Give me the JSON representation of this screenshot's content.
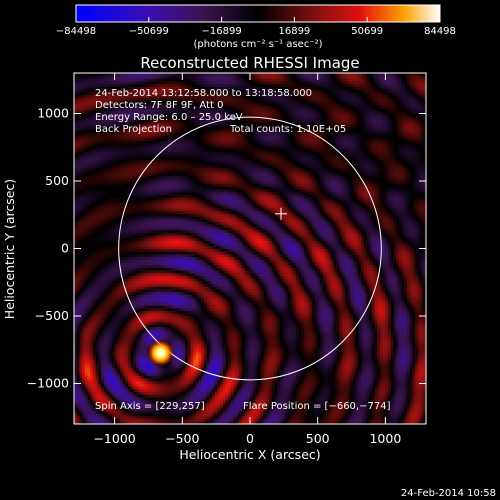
{
  "chart_data": {
    "type": "heatmap",
    "title": "Reconstructed RHESSI Image",
    "xlabel": "Heliocentric X (arcsec)",
    "ylabel": "Heliocentric Y (arcsec)",
    "xlim": [
      -1300,
      1300
    ],
    "ylim": [
      -1300,
      1300
    ],
    "xticks": [
      -1000,
      -500,
      0,
      500,
      1000
    ],
    "yticks": [
      -1000,
      -500,
      0,
      500,
      1000
    ],
    "xtick_labels": [
      "−1000",
      "−500",
      "0",
      "500",
      "1000"
    ],
    "ytick_labels": [
      "−1000",
      "−500",
      "0",
      "500",
      "1000"
    ],
    "colorbar": {
      "min": -84498,
      "max": 84498,
      "ticks": [
        -84498,
        -50699,
        -16899,
        16899,
        50699,
        84498
      ],
      "tick_labels": [
        "−84498",
        "−50699",
        "−16899",
        "16899",
        "50699",
        "84498"
      ],
      "units_text": "(photons cm⁻² s⁻¹ asec⁻²)"
    },
    "annotations": {
      "time_range": "24‐Feb‐2014 13:12:58.000 to 13:18:58.000",
      "detectors": "Detectors: 7F 8F 9F, Att 0",
      "energy": "Energy Range: 6.0 – 25.0 keV",
      "method": "Back Projection",
      "counts": "Total counts: 1.10E+05",
      "spin_axis": "Spin Axis = [229,257]",
      "flare_position": "Flare Position = [−660,−774]"
    },
    "flare": {
      "x": -660,
      "y": -774
    },
    "spin_axis": {
      "x": 229,
      "y": 257
    },
    "solar_limb_center": {
      "x": 0,
      "y": 0
    },
    "solar_limb_radius": 970,
    "grid": false,
    "colormap": "blue-purple-black-red-yellow-white"
  },
  "footer": {
    "plot_date": "24‐Feb‐2014 10:58"
  }
}
